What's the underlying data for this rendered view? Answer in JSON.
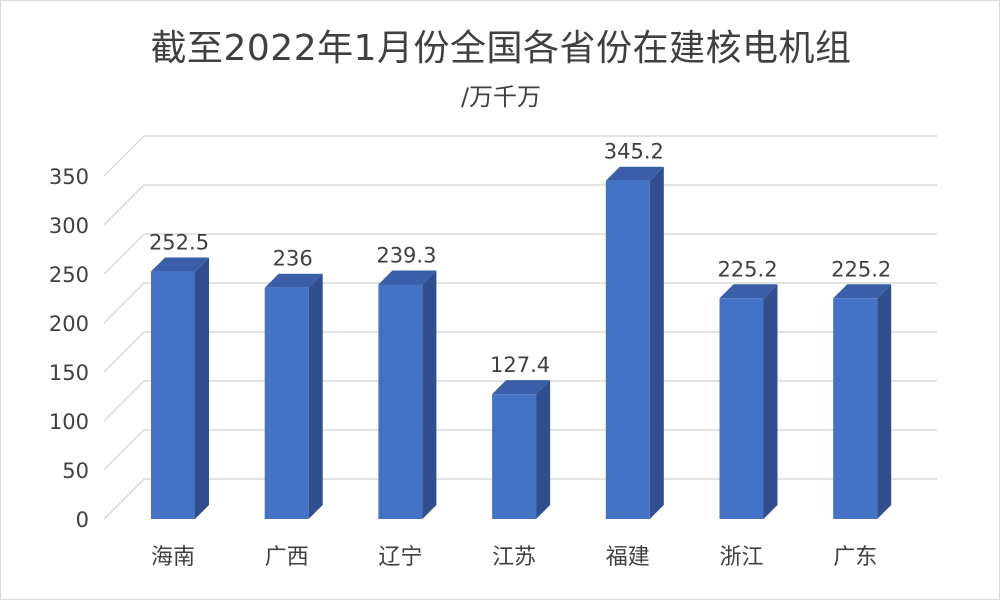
{
  "chart_data": {
    "type": "bar",
    "title": "截至2022年1月份全国各省份在建核电机组",
    "subtitle": "/万千万",
    "categories": [
      "海南",
      "广西",
      "辽宁",
      "江苏",
      "福建",
      "浙江",
      "广东"
    ],
    "values": [
      252.5,
      236,
      239.3,
      127.4,
      345.2,
      225.2,
      225.2
    ],
    "data_labels": [
      "252.5",
      "236",
      "239.3",
      "127.4",
      "345.2",
      "225.2",
      "225.2"
    ],
    "y_ticks": [
      "0",
      "50",
      "100",
      "150",
      "200",
      "250",
      "300",
      "350"
    ],
    "ylim": [
      0,
      350
    ],
    "grid": true,
    "legend": "none",
    "colors": {
      "bar_front": "#4472c4",
      "bar_side": "#2f4f8f",
      "bar_top": "#3a5fa8",
      "grid": "#d9d9d9",
      "text": "#404040"
    }
  }
}
